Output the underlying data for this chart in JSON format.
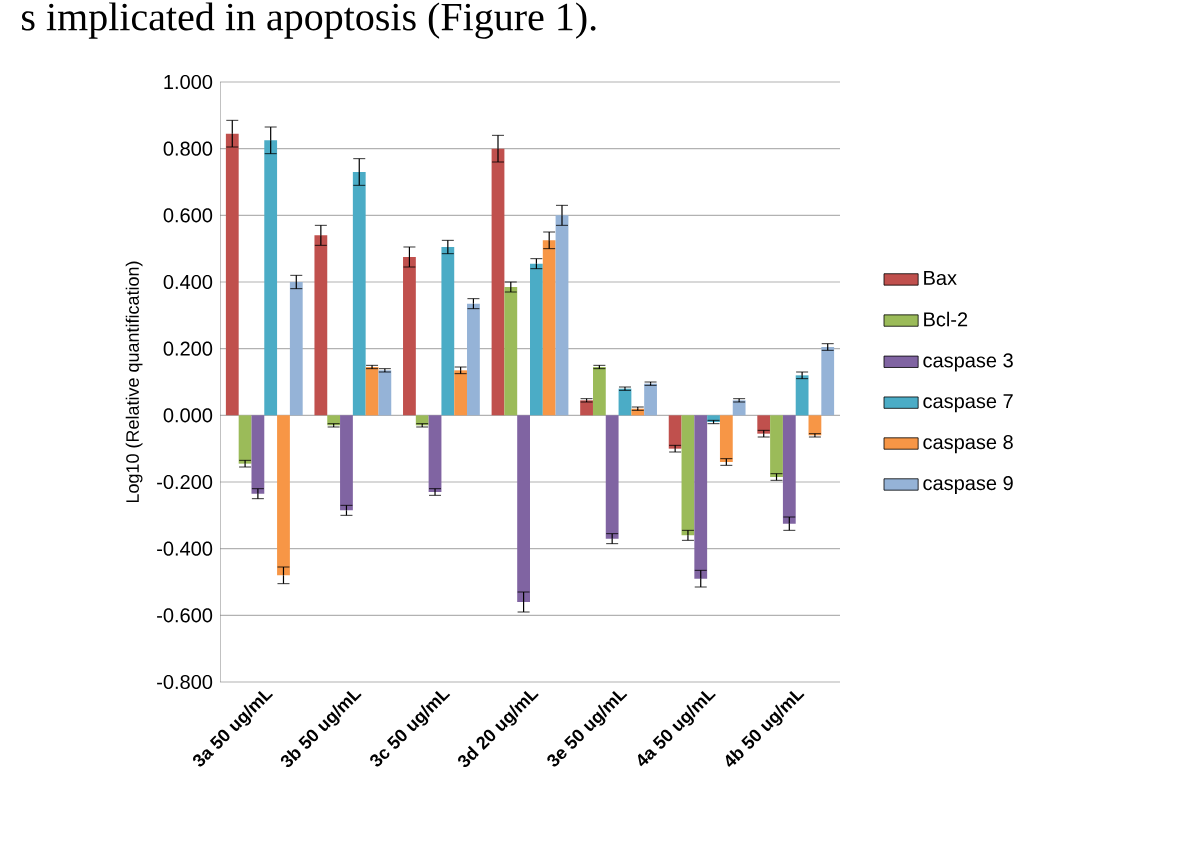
{
  "chart_data": {
    "type": "bar",
    "ylabel": "Log10 (Relative quantification)",
    "annotations": [
      "s implicated in apoptosis (Figure 1)."
    ],
    "categories": [
      "3a 50 ug/mL",
      "3b 50 ug/mL",
      "3c 50 ug/mL",
      "3d 20 ug/mL",
      "3e 50 ug/mL",
      "4a 50 ug/mL",
      "4b 50 ug/mL"
    ],
    "series": [
      {
        "name": "Bax",
        "color": "#c0504d",
        "values": [
          0.845,
          0.54,
          0.475,
          0.8,
          0.045,
          -0.1,
          -0.055
        ],
        "errors": [
          0.04,
          0.03,
          0.03,
          0.04,
          0.005,
          0.01,
          0.01
        ]
      },
      {
        "name": "Bcl-2",
        "color": "#9bbb59",
        "values": [
          -0.145,
          -0.03,
          -0.03,
          0.385,
          0.145,
          -0.36,
          -0.185
        ],
        "errors": [
          0.01,
          0.005,
          0.005,
          0.015,
          0.005,
          0.015,
          0.01
        ]
      },
      {
        "name": "caspase 3",
        "color": "#8064a2",
        "values": [
          -0.235,
          -0.285,
          -0.23,
          -0.56,
          -0.37,
          -0.49,
          -0.325
        ],
        "errors": [
          0.015,
          0.015,
          0.01,
          0.03,
          0.015,
          0.025,
          0.02
        ]
      },
      {
        "name": "caspase 7",
        "color": "#4bacc6",
        "values": [
          0.825,
          0.73,
          0.505,
          0.455,
          0.08,
          -0.02,
          0.12
        ],
        "errors": [
          0.04,
          0.04,
          0.02,
          0.015,
          0.005,
          0.005,
          0.01
        ]
      },
      {
        "name": "caspase 8",
        "color": "#f79646",
        "values": [
          -0.48,
          0.145,
          0.135,
          0.525,
          0.02,
          -0.14,
          -0.06
        ],
        "errors": [
          0.025,
          0.005,
          0.01,
          0.025,
          0.005,
          0.01,
          0.005
        ]
      },
      {
        "name": "caspase 9",
        "color": "#95b3d7",
        "values": [
          0.4,
          0.135,
          0.335,
          0.6,
          0.095,
          0.045,
          0.205
        ],
        "errors": [
          0.02,
          0.005,
          0.015,
          0.03,
          0.005,
          0.005,
          0.01
        ]
      }
    ],
    "ylim": [
      -0.8,
      1.0
    ],
    "yticks": [
      {
        "value": -0.8,
        "label": "-0.800"
      },
      {
        "value": -0.6,
        "label": "-0.600"
      },
      {
        "value": -0.4,
        "label": "-0.400"
      },
      {
        "value": -0.2,
        "label": "-0.200"
      },
      {
        "value": 0,
        "label": "0.000"
      },
      {
        "value": 0.2,
        "label": "0.200"
      },
      {
        "value": 0.4,
        "label": "0.400"
      },
      {
        "value": 0.6,
        "label": "0.600"
      },
      {
        "value": 0.8,
        "label": "0.800"
      },
      {
        "value": 1.0,
        "label": "1.000"
      }
    ],
    "grid": "y",
    "legend": "right"
  }
}
